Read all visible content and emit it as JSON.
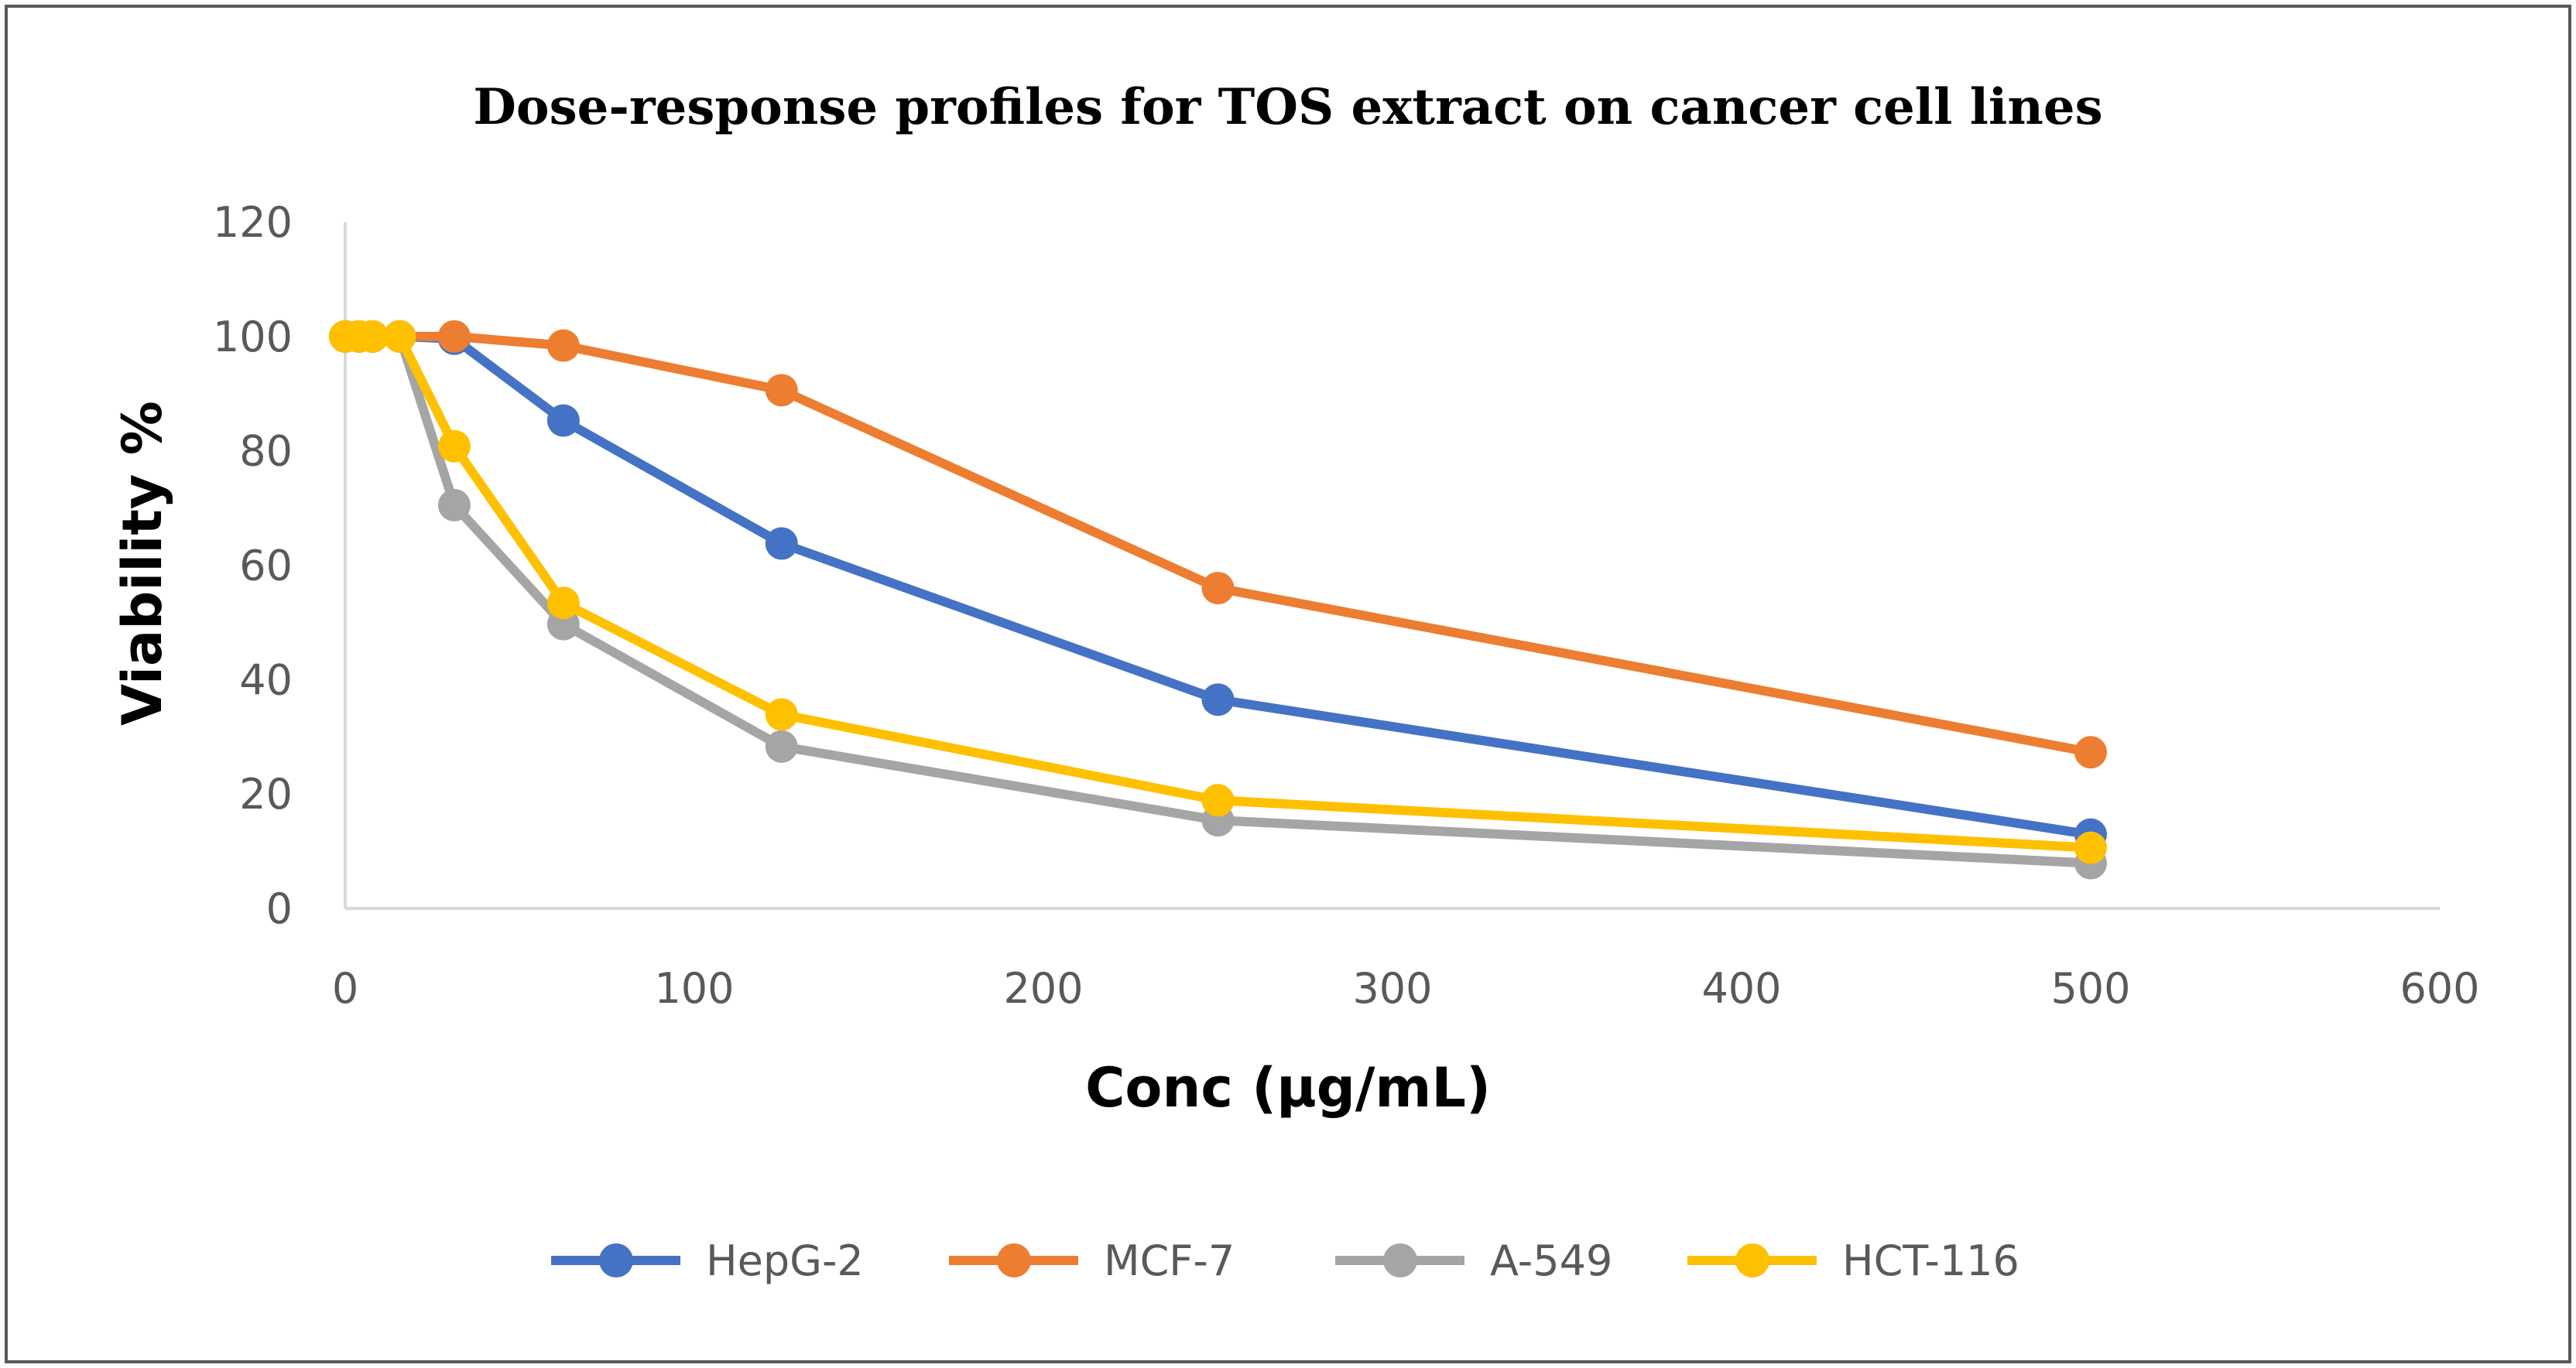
{
  "chart_data": {
    "type": "line",
    "title": "Dose-response profiles for TOS extract on cancer cell lines",
    "xlabel": "Conc (µg/mL)",
    "ylabel": "Viability %",
    "xlim": [
      0,
      600
    ],
    "ylim": [
      0,
      120
    ],
    "xticks": [
      0,
      100,
      200,
      300,
      400,
      500,
      600
    ],
    "yticks": [
      0,
      20,
      40,
      60,
      80,
      100,
      120
    ],
    "x": [
      0,
      3.9,
      7.8,
      15.6,
      31.25,
      62.5,
      125,
      250,
      500
    ],
    "grid": false,
    "legend_position": "bottom",
    "series": [
      {
        "name": "HepG-2",
        "color": "#4472C4",
        "values": [
          100,
          100,
          100,
          100,
          99.6,
          85.3,
          63.8,
          36.5,
          12.9
        ]
      },
      {
        "name": "MCF-7",
        "color": "#ED7D31",
        "values": [
          100,
          100,
          100,
          100,
          100,
          98.4,
          90.6,
          56.0,
          27.3
        ]
      },
      {
        "name": "A-549",
        "color": "#A5A5A5",
        "values": [
          100,
          100,
          100,
          100,
          70.5,
          49.7,
          28.3,
          15.4,
          7.9
        ]
      },
      {
        "name": "HCT-116",
        "color": "#FFC000",
        "values": [
          100,
          100,
          100,
          100,
          80.8,
          53.4,
          33.9,
          18.9,
          10.6
        ]
      }
    ]
  },
  "colors": {
    "frame": "#595959",
    "axis": "#D9D9D9",
    "tick_text": "#595959"
  }
}
